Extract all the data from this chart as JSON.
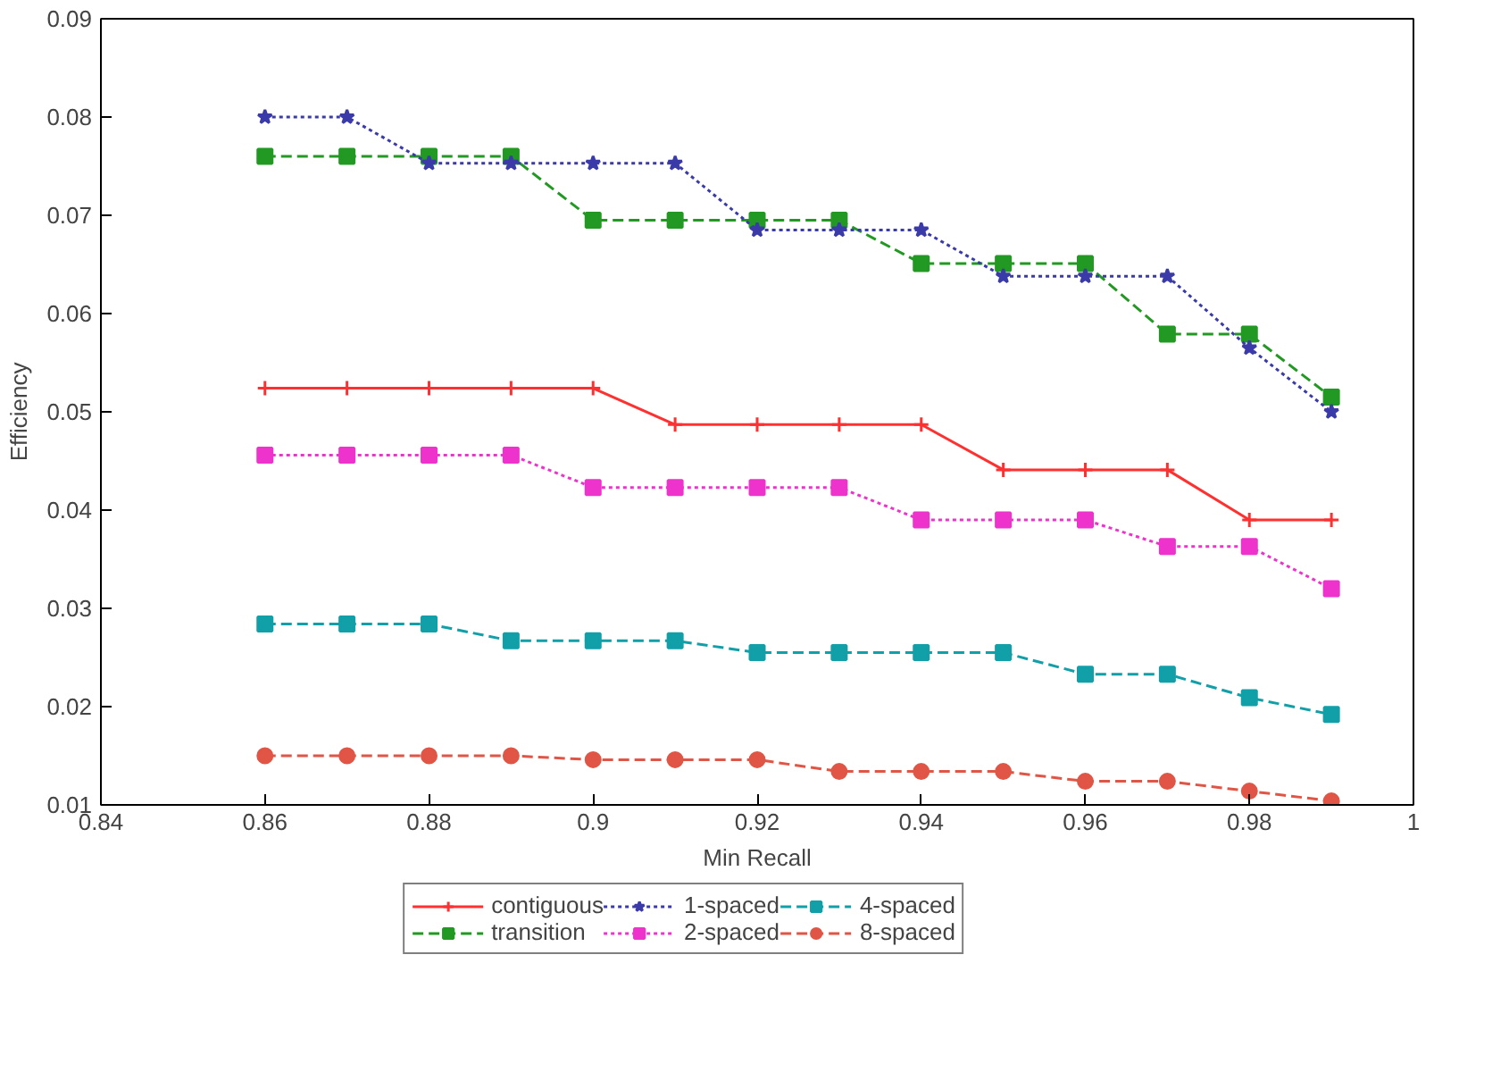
{
  "chart_data": {
    "type": "line",
    "xlabel": "Min Recall",
    "ylabel": "Efficiency",
    "x": [
      0.86,
      0.87,
      0.88,
      0.89,
      0.9,
      0.91,
      0.92,
      0.93,
      0.94,
      0.95,
      0.96,
      0.97,
      0.98,
      0.99
    ],
    "xlim": [
      0.84,
      1.0
    ],
    "xticks": [
      0.84,
      0.86,
      0.88,
      0.9,
      0.92,
      0.94,
      0.96,
      0.98,
      1
    ],
    "ylim": [
      0.01,
      0.09
    ],
    "yticks": [
      0.01,
      0.02,
      0.03,
      0.04,
      0.05,
      0.06,
      0.07,
      0.08,
      0.09
    ],
    "grid": false,
    "legend": "bottom",
    "series": [
      {
        "name": "contiguous",
        "color": "#ff3030",
        "marker": "cross",
        "line_style": "solid",
        "values": [
          0.0524,
          0.0524,
          0.0524,
          0.0524,
          0.0524,
          0.0487,
          0.0487,
          0.0487,
          0.0487,
          0.0441,
          0.0441,
          0.0441,
          0.039,
          0.039
        ]
      },
      {
        "name": "transition",
        "color": "#229922",
        "marker": "square",
        "line_style": "dashed",
        "values": [
          0.076,
          0.076,
          0.076,
          0.076,
          0.0695,
          0.0695,
          0.0695,
          0.0695,
          0.0651,
          0.0651,
          0.0651,
          0.0579,
          0.0579,
          0.0515
        ]
      },
      {
        "name": "1-spaced",
        "color": "#3a3aa8",
        "marker": "star",
        "line_style": "dotted",
        "values": [
          0.08,
          0.08,
          0.0753,
          0.0753,
          0.0753,
          0.0753,
          0.0685,
          0.0685,
          0.0685,
          0.0638,
          0.0638,
          0.0638,
          0.0565,
          0.05
        ]
      },
      {
        "name": "2-spaced",
        "color": "#ee33cc",
        "marker": "square",
        "line_style": "dotted",
        "values": [
          0.0456,
          0.0456,
          0.0456,
          0.0456,
          0.0423,
          0.0423,
          0.0423,
          0.0423,
          0.039,
          0.039,
          0.039,
          0.0363,
          0.0363,
          0.032
        ]
      },
      {
        "name": "4-spaced",
        "color": "#119fa8",
        "marker": "square",
        "line_style": "dashed",
        "values": [
          0.0284,
          0.0284,
          0.0284,
          0.0267,
          0.0267,
          0.0267,
          0.0255,
          0.0255,
          0.0255,
          0.0255,
          0.0233,
          0.0233,
          0.0209,
          0.0192
        ]
      },
      {
        "name": "8-spaced",
        "color": "#e05545",
        "marker": "circle",
        "line_style": "dashed",
        "values": [
          0.015,
          0.015,
          0.015,
          0.015,
          0.0146,
          0.0146,
          0.0146,
          0.0134,
          0.0134,
          0.0134,
          0.0124,
          0.0124,
          0.0114,
          0.0104
        ]
      }
    ]
  }
}
